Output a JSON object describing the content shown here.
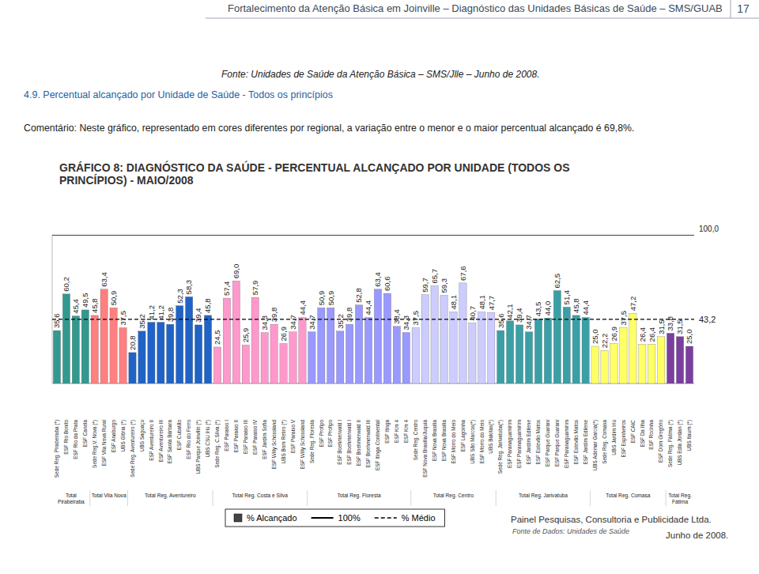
{
  "page": {
    "header": "Fortalecimento da Atenção Básica em Joinville – Diagnóstico das Unidades Básicas de Saúde – SMS/GUAB",
    "page_number": "17",
    "source": "Fonte: Unidades de Saúde da Atenção Básica – SMS/Jlle – Junho de 2008.",
    "section": "4.9. Percentual alcançado por Unidade de Saúde - Todos os princípios",
    "comment": "Comentário: Neste gráfico, representado em cores diferentes por regional, a variação entre o menor e o maior percentual alcançado é 69,8%.",
    "footer": {
      "company": "Painel Pesquisas, Consultoria e Publicidade Ltda.",
      "data_source": "Fonte de Dados: Unidades de Saúde",
      "date": "Junho de 2008."
    }
  },
  "chart_data": {
    "type": "bar",
    "title": "GRÁFICO 8: DIAGNÓSTICO DA SAÚDE - PERCENTUAL ALCANÇADO POR UNIDADE (TODOS OS PRINCÍPIOS) - MAIO/2008",
    "categories": [
      "Sede Reg. Pirabeiraba (*)",
      "ESF Rio Bonito",
      "ESF Rio da Prata",
      "ESF Canela",
      "Sede Reg.V. Nova (*)",
      "ESF Vila Nova Rural",
      "ESF Anaburgo",
      "UBS Glória (*)",
      "Sede Reg. Aventureiro (*)",
      "UBS Saguaçu",
      "ESF Aventureiro II",
      "ESF Aventureiro III",
      "ESF Santa Bárbara",
      "ESF Cubatão",
      "ESF Rio do Ferro",
      "UBS Parque Joinville (*)",
      "UBS CSU Iriú (*)",
      "Sede Reg. C.Silva (*)",
      "ESF Paraíso I",
      "ESF Paraíso II",
      "ESF Paraíso III",
      "ESF Paraíso IV",
      "ESF Jardim Sofia",
      "ESF Willy Schossland",
      "UBS Bom Retiro (*)",
      "ESF Paraíso V",
      "ESF Willy Schossland",
      "Sede Reg. Floresta",
      "ESF Profipo",
      "ESF Profipo",
      "ESF Boehmerwald I",
      "ESF Boehmerwald I",
      "ESF Boehmerwald II",
      "ESF Boehmerwald III",
      "ESF Itinga Continental",
      "ESF Itinga",
      "ESF Km 4",
      "ESF Km 4",
      "Sede Reg. Centro",
      "ESF Nova Brasília/Juquiá",
      "ESF Nova Brasília",
      "ESF Nova Brasília",
      "ESF Morro do Meio",
      "ESF Lagoinha",
      "UBS São Marcos(*)",
      "ESF Morro do Meio",
      "UBS Bakitas(*)",
      "Sede Reg. Jarivatuba(*)",
      "ESF Paranaguamirim",
      "ESF Paranaguamirim",
      "ESF Jardim Edilene",
      "ESF Estevão Matos",
      "ESF Parque Guarani",
      "ESF Parque Guarani",
      "ESF Paranaguamirim",
      "ESF Estevão Matos",
      "ESF Jardim Edilene",
      "UBS Ademar Garcia(*)",
      "Sede Reg. Comasa",
      "UBS Jardim Iriú",
      "ESF Espinheiros",
      "ESF CAIC",
      "ESF Da Ilha",
      "ESF Rocinha",
      "ESF Dom Gregório",
      "Sede Reg. Fátima (*)",
      "UBS Edla Jordan (*)",
      "UBS Itaum (*)"
    ],
    "series": [
      {
        "name": "% Alcançado",
        "values": [
          35.6,
          60.2,
          45.4,
          49.5,
          45.8,
          63.4,
          50.9,
          37.5,
          20.8,
          35.2,
          41.2,
          41.2,
          39.8,
          52.3,
          58.3,
          39.4,
          45.8,
          24.5,
          57.4,
          69.0,
          25.9,
          57.9,
          34.3,
          39.8,
          26.9,
          34.7,
          44.4,
          34.7,
          50.9,
          50.9,
          35.2,
          39.8,
          52.8,
          44.4,
          63.4,
          60.6,
          38.4,
          34.3,
          37.5,
          59.7,
          65.7,
          59.3,
          48.1,
          67.6,
          40.7,
          48.1,
          47.7,
          35.6,
          42.1,
          39.4,
          34.7,
          43.5,
          44.0,
          62.5,
          51.4,
          45.8,
          44.4,
          25.0,
          22.2,
          26.9,
          37.5,
          47.2,
          26.4,
          26.4,
          31.5,
          33.8,
          31.5,
          25.0
        ],
        "value_labels": [
          "35,6",
          "60,2",
          "45,4",
          "49,5",
          "45,8",
          "63,4",
          "50,9",
          "37,5",
          "20,8",
          "35,2",
          "41,2",
          "41,2",
          "39,8",
          "52,3",
          "58,3",
          "39,4",
          "45,8",
          "24,5",
          "57,4",
          "69,0",
          "25,9",
          "57,9",
          "34,3",
          "39,8",
          "26,9",
          "34,7",
          "44,4",
          "34,7",
          "50,9",
          "50,9",
          "35,2",
          "39,8",
          "52,8",
          "44,4",
          "63,4",
          "60,6",
          "38,4",
          "34,3",
          "37,5",
          "59,7",
          "65,7",
          "59,3",
          "48,1",
          "67,6",
          "40,7",
          "48,1",
          "47,7",
          "35,6",
          "42,1",
          "39,4",
          "34,7",
          "43,5",
          "44,0",
          "62,5",
          "51,4",
          "45,8",
          "44,4",
          "25,0",
          "22,2",
          "26,9",
          "37,5",
          "47,2",
          "26,4",
          "26,4",
          "31,5",
          "33,8",
          "31,5",
          "25,0"
        ],
        "colors": [
          "#33998f",
          "#33998f",
          "#33998f",
          "#33998f",
          "#ff8080",
          "#ff8080",
          "#ff8080",
          "#ff8080",
          "#1f63c6",
          "#1f63c6",
          "#1f63c6",
          "#1f63c6",
          "#1f63c6",
          "#1f63c6",
          "#1f63c6",
          "#1f63c6",
          "#1f63c6",
          "#ff99cc",
          "#ff99cc",
          "#ff99cc",
          "#ff99cc",
          "#ff99cc",
          "#ff99cc",
          "#ff99cc",
          "#ff99cc",
          "#ff99cc",
          "#ff99cc",
          "#9999ff",
          "#9999ff",
          "#9999ff",
          "#9999ff",
          "#9999ff",
          "#9999ff",
          "#9999ff",
          "#9999ff",
          "#9999ff",
          "#9999ff",
          "#9999ff",
          "#ccccff",
          "#ccccff",
          "#ccccff",
          "#ccccff",
          "#ccccff",
          "#ccccff",
          "#ccccff",
          "#ccccff",
          "#ccccff",
          "#3aa0a6",
          "#3aa0a6",
          "#3aa0a6",
          "#3aa0a6",
          "#3aa0a6",
          "#3aa0a6",
          "#3aa0a6",
          "#3aa0a6",
          "#3aa0a6",
          "#3aa0a6",
          "#ffff66",
          "#ffff66",
          "#ffff66",
          "#ffff66",
          "#ffff66",
          "#ffff66",
          "#ffff66",
          "#ffff66",
          "#7a3f9e",
          "#7a3f9e",
          "#7a3f9e"
        ]
      }
    ],
    "reference_lines": [
      {
        "name": "100%",
        "value": 100,
        "label": "100,0",
        "color": "#000000",
        "line_style": "solid"
      },
      {
        "name": "% Médio",
        "value": 43.2,
        "label": "43,2",
        "color": "#000000",
        "line_style": "dashed"
      }
    ],
    "groups": [
      {
        "label": "Total Pirabeiraba",
        "size": 4
      },
      {
        "label": "Total Vila Nova",
        "size": 4
      },
      {
        "label": "Total Reg. Aventureiro",
        "size": 9
      },
      {
        "label": "Total Reg. Costa e Silva",
        "size": 10
      },
      {
        "label": "Total Reg. Floresta",
        "size": 11
      },
      {
        "label": "Total Reg. Centro",
        "size": 9
      },
      {
        "label": "Total Reg. Jarivatuba",
        "size": 10
      },
      {
        "label": "Total Reg. Comasa",
        "size": 8
      },
      {
        "label": "Total Reg. Fátima",
        "size": 3
      }
    ],
    "ylim": [
      0,
      100
    ],
    "yticks": [],
    "tick_labels": "x",
    "data_labels": true,
    "legend": "bottom"
  }
}
